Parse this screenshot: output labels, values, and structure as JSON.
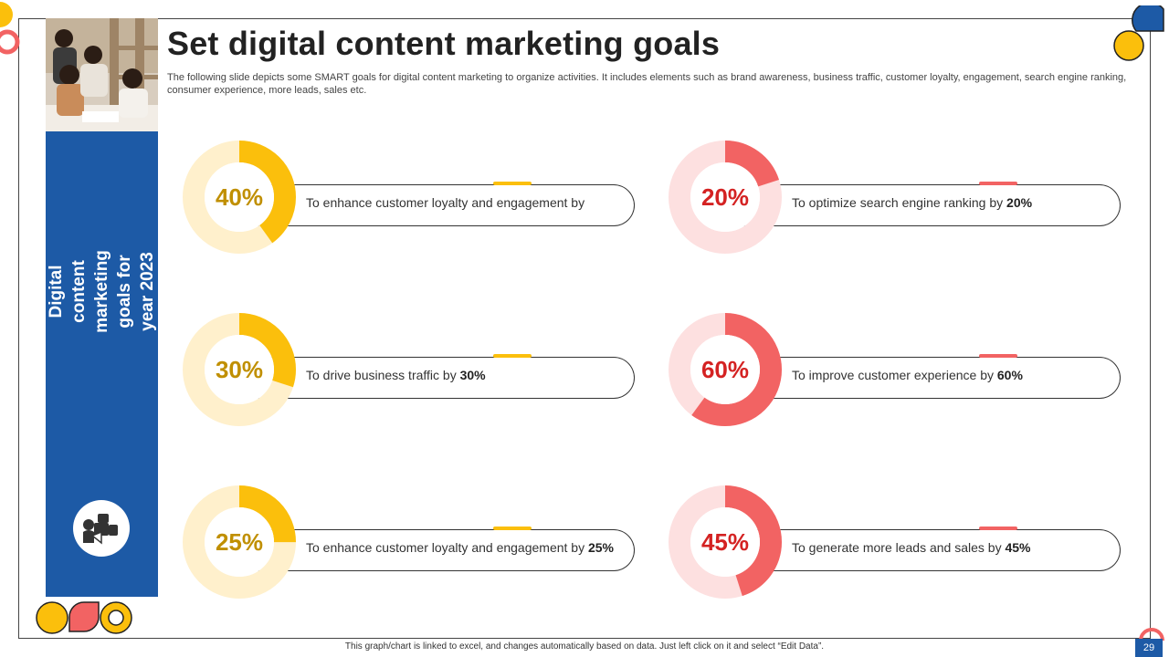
{
  "slide": {
    "title": "Set digital content marketing goals",
    "subtitle": "The following slide depicts some SMART goals for digital content marketing to organize activities. It includes elements such as brand awareness, business traffic, customer loyalty, engagement, search engine ranking, consumer experience, more leads, sales etc.",
    "sidebar_title": "Digital content marketing\ngoals for year 2023",
    "footer_note": "This graph/chart is linked to excel, and changes automatically based on data. Just left click on it and select “Edit Data”.",
    "page_number": "29"
  },
  "colors": {
    "blue": "#1d5aa6",
    "yellow": "#fbbf0c",
    "yellow_light": "#fff0cc",
    "yellow_text": "#c08f00",
    "red": "#f26363",
    "red_light": "#fde0e0",
    "red_text": "#d42222"
  },
  "chart_data": {
    "type": "pie",
    "subtype": "donut",
    "goals": [
      {
        "label": "40%",
        "value": 40,
        "text": "To enhance customer loyalty and engagement by",
        "bold": "",
        "color": "yellow"
      },
      {
        "label": "20%",
        "value": 20,
        "text": "To optimize search engine ranking by ",
        "bold": "20%",
        "color": "red"
      },
      {
        "label": "30%",
        "value": 30,
        "text": "To drive business traffic by ",
        "bold": "30%",
        "color": "yellow"
      },
      {
        "label": "60%",
        "value": 60,
        "text": "To improve customer experience by ",
        "bold": "60%",
        "color": "red"
      },
      {
        "label": "25%",
        "value": 25,
        "text": "To enhance customer loyalty and engagement by ",
        "bold": "25%",
        "color": "yellow"
      },
      {
        "label": "45%",
        "value": 45,
        "text": "To generate more leads and sales by ",
        "bold": "45%",
        "color": "red"
      }
    ]
  },
  "icons": {
    "sidebar_icon": "marketing-megaphone-icon"
  }
}
